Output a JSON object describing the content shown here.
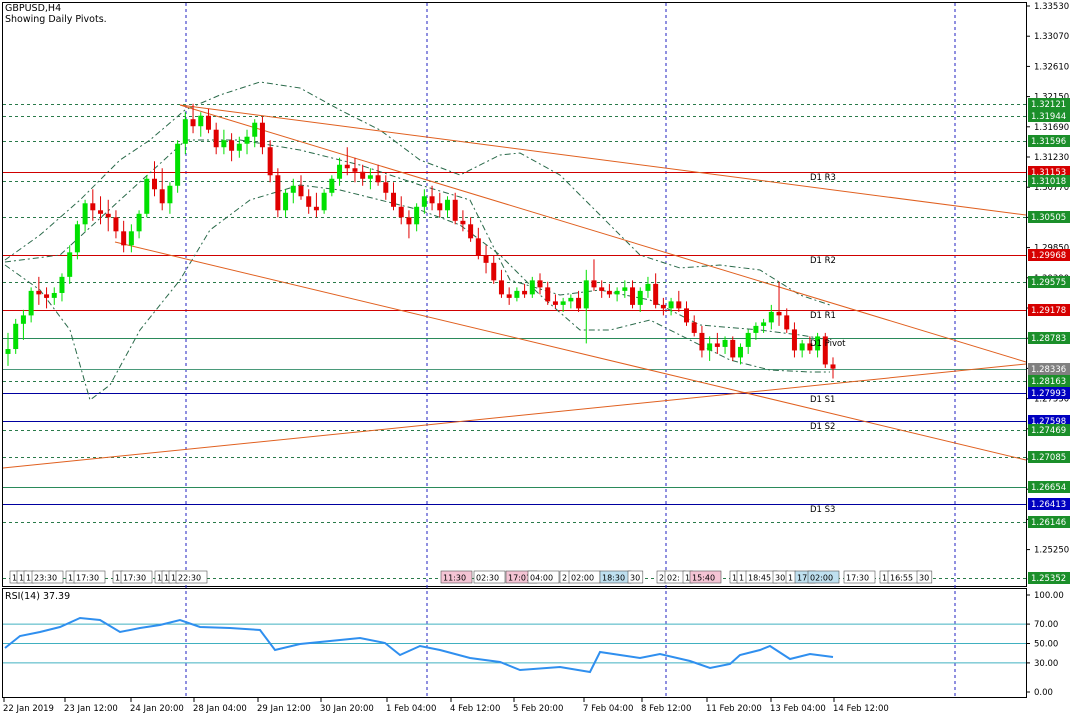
{
  "header": {
    "symbol": "GBPUSD,H4",
    "subtitle": "Showing Daily Pivots."
  },
  "rsi_panel": {
    "label": "RSI(14) 37.39",
    "ticks": [
      "100.00",
      "70.00",
      "50.00",
      "30.00",
      "0.00"
    ]
  },
  "price_axis": {
    "ticks": [
      "1.33530",
      "1.33070",
      "1.32610",
      "1.32150",
      "1.31690",
      "1.31230",
      "1.30770",
      "1.30310",
      "1.29850",
      "1.29390",
      "1.28930",
      "1.28470",
      "1.28010",
      "1.27550",
      "1.27090",
      "1.26630",
      "1.26170",
      "1.25710",
      "1.25250"
    ]
  },
  "price_tags": [
    {
      "value": "1.32121",
      "color": "#1b8f2a"
    },
    {
      "value": "1.31944",
      "color": "#1b8f2a"
    },
    {
      "value": "1.31596",
      "color": "#1b8f2a"
    },
    {
      "value": "1.31153",
      "color": "#d60000"
    },
    {
      "value": "1.31018",
      "color": "#1b8f2a"
    },
    {
      "value": "1.30505",
      "color": "#1b8f2a"
    },
    {
      "value": "1.29968",
      "color": "#d60000"
    },
    {
      "value": "1.29575",
      "color": "#1b8f2a"
    },
    {
      "value": "1.29178",
      "color": "#d60000"
    },
    {
      "value": "1.28783",
      "color": "#1b8f2a"
    },
    {
      "value": "1.28336",
      "color": "#808080"
    },
    {
      "value": "1.28163",
      "color": "#1b8f2a"
    },
    {
      "value": "1.27993",
      "color": "#0000c0"
    },
    {
      "value": "1.27598",
      "color": "#0000c0"
    },
    {
      "value": "1.27469",
      "color": "#1b8f2a"
    },
    {
      "value": "1.27085",
      "color": "#1b8f2a"
    },
    {
      "value": "1.26654",
      "color": "#1b8f2a"
    },
    {
      "value": "1.26413",
      "color": "#0000c0"
    },
    {
      "value": "1.26146",
      "color": "#1b8f2a"
    },
    {
      "value": "1.25352",
      "color": "#1b8f2a"
    }
  ],
  "pivot_labels": [
    "D1 R3",
    "D1 R2",
    "D1 R1",
    "D1 Pivot",
    "D1 S1",
    "D1 S2",
    "D1 S3"
  ],
  "date_axis": [
    "22 Jan 2019",
    "23 Jan 12:00",
    "24 Jan 20:00",
    "28 Jan 04:00",
    "29 Jan 12:00",
    "30 Jan 20:00",
    "1 Feb 04:00",
    "4 Feb 12:00",
    "5 Feb 20:00",
    "7 Feb 04:00",
    "8 Feb 12:00",
    "11 Feb 20:00",
    "13 Feb 04:00",
    "14 Feb 12:00"
  ],
  "time_labels": [
    {
      "text": "1",
      "bg": "#ffffff"
    },
    {
      "text": "1",
      "bg": "#ffffff"
    },
    {
      "text": "1",
      "bg": "#ffffff"
    },
    {
      "text": "23:30",
      "bg": "#ffffff"
    },
    {
      "text": "1",
      "bg": "#ffffff"
    },
    {
      "text": "17:30",
      "bg": "#ffffff"
    },
    {
      "text": "1",
      "bg": "#ffffff"
    },
    {
      "text": "17:30",
      "bg": "#ffffff"
    },
    {
      "text": "1",
      "bg": "#ffffff"
    },
    {
      "text": "1",
      "bg": "#ffffff"
    },
    {
      "text": "1",
      "bg": "#ffffff"
    },
    {
      "text": "22:30",
      "bg": "#ffffff"
    },
    {
      "text": "11:30",
      "bg": "#f4c4d4"
    },
    {
      "text": "02:30",
      "bg": "#ffffff"
    },
    {
      "text": "17:01",
      "bg": "#f4c4d4"
    },
    {
      "text": "04:00",
      "bg": "#ffffff"
    },
    {
      "text": "2",
      "bg": "#ffffff"
    },
    {
      "text": "02:00",
      "bg": "#ffffff"
    },
    {
      "text": "18:30",
      "bg": "#bfe0f0"
    },
    {
      "text": "30",
      "bg": "#ffffff"
    },
    {
      "text": "2",
      "bg": "#ffffff"
    },
    {
      "text": "02:",
      "bg": "#ffffff"
    },
    {
      "text": "1",
      "bg": "#ffffff"
    },
    {
      "text": "15:40",
      "bg": "#f4c4d4"
    },
    {
      "text": "1",
      "bg": "#ffffff"
    },
    {
      "text": "1",
      "bg": "#ffffff"
    },
    {
      "text": "18:45",
      "bg": "#ffffff"
    },
    {
      "text": "30",
      "bg": "#ffffff"
    },
    {
      "text": "1",
      "bg": "#ffffff"
    },
    {
      "text": "17:",
      "bg": "#bfe0f0"
    },
    {
      "text": "02:00",
      "bg": "#bfe0f0"
    },
    {
      "text": "17:30",
      "bg": "#ffffff"
    },
    {
      "text": "1",
      "bg": "#ffffff"
    },
    {
      "text": "16:55",
      "bg": "#ffffff"
    },
    {
      "text": "30",
      "bg": "#ffffff"
    }
  ],
  "colors": {
    "bull": "#00e000",
    "bear": "#e00000",
    "trendline": "#e06020",
    "pivot_line": "#d00000",
    "pivot_support": "#0000a0",
    "level_dashed": "#2a7a4a",
    "grid_vertical": "#2020c0",
    "band": "#2a6a4a",
    "rsi_line": "#2f8fef",
    "rsi_level": "#40b0c0"
  },
  "chart_data": {
    "type": "candlestick",
    "symbol": "GBPUSD",
    "timeframe": "H4",
    "ylim": [
      1.2516,
      1.336
    ],
    "candles": [
      [
        1.2855,
        1.2885,
        1.2838,
        1.2862
      ],
      [
        1.2862,
        1.2905,
        1.2855,
        1.2898
      ],
      [
        1.2898,
        1.2918,
        1.2875,
        1.291
      ],
      [
        1.291,
        1.295,
        1.29,
        1.2945
      ],
      [
        1.2945,
        1.2965,
        1.2925,
        1.294
      ],
      [
        1.294,
        1.295,
        1.292,
        1.2935
      ],
      [
        1.2935,
        1.295,
        1.2925,
        1.2942
      ],
      [
        1.2942,
        1.297,
        1.293,
        1.2965
      ],
      [
        1.2965,
        1.301,
        1.2955,
        1.3
      ],
      [
        1.3,
        1.3045,
        1.299,
        1.304
      ],
      [
        1.304,
        1.3075,
        1.303,
        1.307
      ],
      [
        1.307,
        1.309,
        1.3045,
        1.306
      ],
      [
        1.306,
        1.308,
        1.304,
        1.3055
      ],
      [
        1.3055,
        1.3075,
        1.303,
        1.305
      ],
      [
        1.305,
        1.306,
        1.302,
        1.303
      ],
      [
        1.303,
        1.3045,
        1.3,
        1.301
      ],
      [
        1.301,
        1.304,
        1.3,
        1.303
      ],
      [
        1.303,
        1.306,
        1.302,
        1.3055
      ],
      [
        1.3055,
        1.311,
        1.305,
        1.3105
      ],
      [
        1.3105,
        1.313,
        1.308,
        1.309
      ],
      [
        1.309,
        1.312,
        1.306,
        1.307
      ],
      [
        1.307,
        1.31,
        1.3055,
        1.3095
      ],
      [
        1.3095,
        1.316,
        1.3085,
        1.3155
      ],
      [
        1.3155,
        1.32,
        1.314,
        1.319
      ],
      [
        1.319,
        1.3212,
        1.317,
        1.318
      ],
      [
        1.318,
        1.32,
        1.3165,
        1.3195
      ],
      [
        1.3195,
        1.3205,
        1.317,
        1.3175
      ],
      [
        1.3175,
        1.3185,
        1.314,
        1.315
      ],
      [
        1.315,
        1.3175,
        1.314,
        1.316
      ],
      [
        1.316,
        1.317,
        1.313,
        1.3145
      ],
      [
        1.3145,
        1.3165,
        1.3135,
        1.3155
      ],
      [
        1.3155,
        1.3175,
        1.314,
        1.3165
      ],
      [
        1.3165,
        1.319,
        1.315,
        1.3185
      ],
      [
        1.3185,
        1.3194,
        1.314,
        1.315
      ],
      [
        1.315,
        1.316,
        1.31,
        1.311
      ],
      [
        1.311,
        1.312,
        1.305,
        1.306
      ],
      [
        1.306,
        1.309,
        1.305,
        1.3085
      ],
      [
        1.3085,
        1.3105,
        1.307,
        1.3095
      ],
      [
        1.3095,
        1.311,
        1.3075,
        1.308
      ],
      [
        1.308,
        1.309,
        1.3055,
        1.3065
      ],
      [
        1.3065,
        1.3085,
        1.305,
        1.306
      ],
      [
        1.306,
        1.309,
        1.3055,
        1.3085
      ],
      [
        1.3085,
        1.311,
        1.308,
        1.3105
      ],
      [
        1.3105,
        1.3135,
        1.3095,
        1.3125
      ],
      [
        1.3125,
        1.315,
        1.311,
        1.312
      ],
      [
        1.312,
        1.3135,
        1.31,
        1.3115
      ],
      [
        1.3115,
        1.3125,
        1.3095,
        1.3105
      ],
      [
        1.3105,
        1.312,
        1.309,
        1.311
      ],
      [
        1.311,
        1.3125,
        1.3095,
        1.31
      ],
      [
        1.31,
        1.311,
        1.3075,
        1.3085
      ],
      [
        1.3085,
        1.31,
        1.306,
        1.3065
      ],
      [
        1.3065,
        1.308,
        1.304,
        1.305
      ],
      [
        1.305,
        1.306,
        1.302,
        1.304
      ],
      [
        1.304,
        1.307,
        1.303,
        1.3065
      ],
      [
        1.3065,
        1.309,
        1.3055,
        1.308
      ],
      [
        1.308,
        1.3095,
        1.306,
        1.307
      ],
      [
        1.307,
        1.3085,
        1.305,
        1.306
      ],
      [
        1.306,
        1.308,
        1.305,
        1.3075
      ],
      [
        1.3075,
        1.3085,
        1.304,
        1.3045
      ],
      [
        1.3045,
        1.306,
        1.303,
        1.304
      ],
      [
        1.304,
        1.305,
        1.3015,
        1.302
      ],
      [
        1.302,
        1.3035,
        1.299,
        1.2995
      ],
      [
        1.2995,
        1.301,
        1.297,
        1.2985
      ],
      [
        1.2985,
        1.2995,
        1.2955,
        1.296
      ],
      [
        1.296,
        1.2975,
        1.2935,
        1.294
      ],
      [
        1.294,
        1.295,
        1.2925,
        1.2935
      ],
      [
        1.2935,
        1.295,
        1.293,
        1.2945
      ],
      [
        1.2945,
        1.2955,
        1.2935,
        1.294
      ],
      [
        1.294,
        1.2965,
        1.2935,
        1.296
      ],
      [
        1.296,
        1.297,
        1.294,
        1.295
      ],
      [
        1.295,
        1.2958,
        1.2925,
        1.293
      ],
      [
        1.293,
        1.294,
        1.292,
        1.2925
      ],
      [
        1.2925,
        1.2935,
        1.2915,
        1.293
      ],
      [
        1.293,
        1.294,
        1.292,
        1.2935
      ],
      [
        1.2935,
        1.2945,
        1.2915,
        1.292
      ],
      [
        1.292,
        1.2975,
        1.287,
        1.296
      ],
      [
        1.296,
        1.299,
        1.2945,
        1.295
      ],
      [
        1.295,
        1.296,
        1.2935,
        1.2945
      ],
      [
        1.2945,
        1.2955,
        1.2935,
        1.294
      ],
      [
        1.294,
        1.295,
        1.293,
        1.2945
      ],
      [
        1.2945,
        1.296,
        1.2935,
        1.295
      ],
      [
        1.295,
        1.296,
        1.292,
        1.2925
      ],
      [
        1.2925,
        1.295,
        1.2915,
        1.2945
      ],
      [
        1.2945,
        1.2965,
        1.2935,
        1.2955
      ],
      [
        1.2955,
        1.297,
        1.292,
        1.2925
      ],
      [
        1.2925,
        1.2935,
        1.291,
        1.292
      ],
      [
        1.292,
        1.2935,
        1.291,
        1.293
      ],
      [
        1.293,
        1.2945,
        1.2915,
        1.292
      ],
      [
        1.292,
        1.293,
        1.2895,
        1.29
      ],
      [
        1.29,
        1.291,
        1.288,
        1.2885
      ],
      [
        1.2885,
        1.2895,
        1.285,
        1.286
      ],
      [
        1.286,
        1.288,
        1.2845,
        1.287
      ],
      [
        1.287,
        1.2885,
        1.2855,
        1.2865
      ],
      [
        1.2865,
        1.288,
        1.2855,
        1.2875
      ],
      [
        1.2875,
        1.288,
        1.2845,
        1.285
      ],
      [
        1.285,
        1.287,
        1.284,
        1.2865
      ],
      [
        1.2865,
        1.289,
        1.2855,
        1.2885
      ],
      [
        1.2885,
        1.29,
        1.2875,
        1.2895
      ],
      [
        1.2895,
        1.2905,
        1.2885,
        1.29
      ],
      [
        1.29,
        1.2925,
        1.289,
        1.2915
      ],
      [
        1.2915,
        1.2958,
        1.2895,
        1.291
      ],
      [
        1.291,
        1.292,
        1.2885,
        1.289
      ],
      [
        1.289,
        1.29,
        1.285,
        1.286
      ],
      [
        1.286,
        1.2875,
        1.285,
        1.287
      ],
      [
        1.287,
        1.288,
        1.2855,
        1.286
      ],
      [
        1.286,
        1.2885,
        1.285,
        1.288
      ],
      [
        1.288,
        1.2885,
        1.2835,
        1.284
      ],
      [
        1.284,
        1.285,
        1.282,
        1.2834
      ]
    ]
  }
}
